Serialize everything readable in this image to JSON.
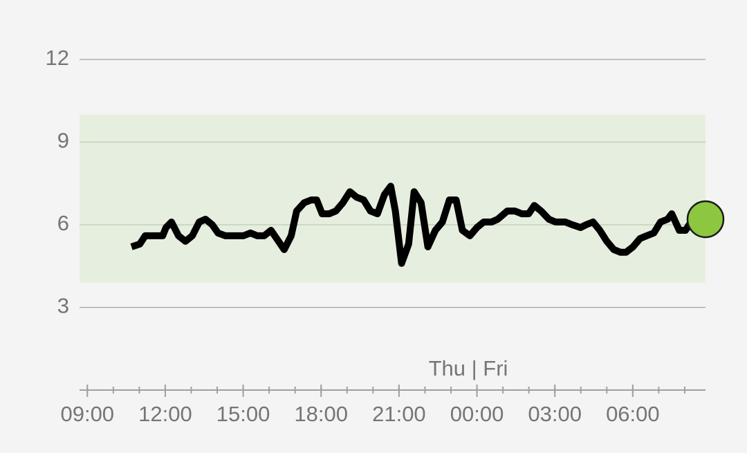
{
  "chart_data": {
    "type": "line",
    "x": [
      10.7,
      11.02,
      11.23,
      11.71,
      11.9,
      12.03,
      12.24,
      12.51,
      12.78,
      13.04,
      13.31,
      13.55,
      13.81,
      14.03,
      14.32,
      14.56,
      15.01,
      15.28,
      15.54,
      15.81,
      16.07,
      16.29,
      16.58,
      16.85,
      17.06,
      17.35,
      17.62,
      17.83,
      18.04,
      18.31,
      18.57,
      18.84,
      19.11,
      19.37,
      19.64,
      19.9,
      20.17,
      20.44,
      20.68,
      20.86,
      21.1,
      21.37,
      21.58,
      21.85,
      22.11,
      22.4,
      22.67,
      22.94,
      23.2,
      23.44,
      23.73,
      24.0,
      24.26,
      24.56,
      24.8,
      25.17,
      25.46,
      25.73,
      25.99,
      26.21,
      26.47,
      26.77,
      27.03,
      27.4,
      27.67,
      27.99,
      28.2,
      28.47,
      28.73,
      29.0,
      29.27,
      29.53,
      29.74,
      30.01,
      30.28,
      30.54,
      30.81,
      31.07,
      31.34,
      31.5,
      31.79,
      32.03,
      32.24
    ],
    "series": [
      {
        "color": "#000000",
        "values": [
          5.2,
          5.3,
          5.6,
          5.6,
          5.6,
          5.9,
          6.1,
          5.6,
          5.4,
          5.6,
          6.1,
          6.2,
          6.0,
          5.7,
          5.6,
          5.6,
          5.6,
          5.7,
          5.6,
          5.6,
          5.8,
          5.5,
          5.1,
          5.6,
          6.5,
          6.8,
          6.9,
          6.9,
          6.4,
          6.4,
          6.5,
          6.8,
          7.2,
          7.0,
          6.9,
          6.5,
          6.4,
          7.1,
          7.4,
          6.5,
          4.6,
          5.3,
          7.2,
          6.8,
          5.2,
          5.8,
          6.1,
          6.9,
          6.9,
          5.8,
          5.6,
          5.9,
          6.1,
          6.1,
          6.2,
          6.5,
          6.5,
          6.4,
          6.4,
          6.7,
          6.5,
          6.2,
          6.1,
          6.1,
          6.0,
          5.9,
          6.0,
          6.1,
          5.8,
          5.4,
          5.1,
          5.0,
          5.0,
          5.2,
          5.5,
          5.6,
          5.7,
          6.1,
          6.2,
          6.4,
          5.8,
          5.8,
          6.1
        ]
      }
    ],
    "xlim": [
      8.7,
      32.8
    ],
    "ylim": [
      0,
      12
    ],
    "yticks": [
      3,
      6,
      9,
      12
    ],
    "xticks": [
      {
        "value": 9,
        "label": "09:00"
      },
      {
        "value": 12,
        "label": "12:00"
      },
      {
        "value": 15,
        "label": "15:00"
      },
      {
        "value": 18,
        "label": "18:00"
      },
      {
        "value": 21,
        "label": "21:00"
      },
      {
        "value": 24,
        "label": "00:00"
      },
      {
        "value": 27,
        "label": "03:00"
      },
      {
        "value": 30,
        "label": "06:00"
      }
    ],
    "xminorticks": [
      9,
      10,
      11,
      12,
      13,
      14,
      15,
      16,
      17,
      18,
      19,
      20,
      21,
      22,
      23,
      24,
      25,
      26,
      27,
      28,
      29,
      30,
      31,
      32
    ],
    "grid": true,
    "target_range": [
      3.9,
      10
    ],
    "target_color": "#e6efdf",
    "current": {
      "x": 32.8,
      "value": 6.2,
      "color": "#8dc63f"
    },
    "day_label": "Thu | Fri"
  }
}
